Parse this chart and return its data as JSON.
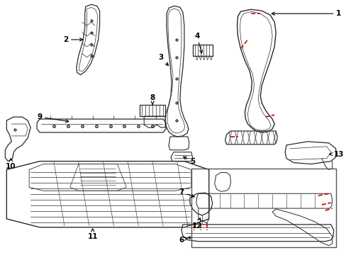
{
  "background_color": "#ffffff",
  "line_color": "#2a2a2a",
  "red_color": "#cc0000",
  "label_color": "#000000",
  "fig_w": 4.89,
  "fig_h": 3.6,
  "dpi": 100
}
